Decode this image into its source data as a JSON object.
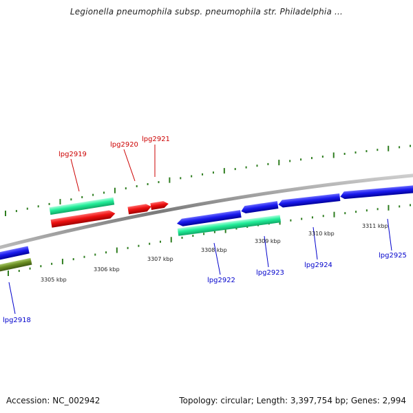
{
  "title": "Legionella pneumophila subsp. pneumophila str. Philadelphia ...",
  "footer": {
    "accession": "Accession: NC_002942",
    "summary": "Topology: circular; Length: 3,397,754 bp; Genes: 2,994"
  },
  "colors": {
    "backbone": "#8a8a8a",
    "tick_upper": "#2e7d1f",
    "tick_lower": "#2e7d1f",
    "label_plus": "#cc0000",
    "label_minus": "#0000cc",
    "gene_red": "#ee1111",
    "gene_blue": "#1a1aee",
    "gene_teal": "#22ee99",
    "gene_olive": "#6b8e23"
  },
  "scale_labels": [
    "3305 kbp",
    "3306 kbp",
    "3307 kbp",
    "3308 kbp",
    "3309 kbp",
    "3310 kbp",
    "3311 kbp"
  ],
  "gene_labels_plus": [
    "lpg2919",
    "lpg2920",
    "lpg2921"
  ],
  "gene_labels_minus": [
    "lpg2918",
    "lpg2922",
    "lpg2923",
    "lpg2924",
    "lpg2925"
  ]
}
